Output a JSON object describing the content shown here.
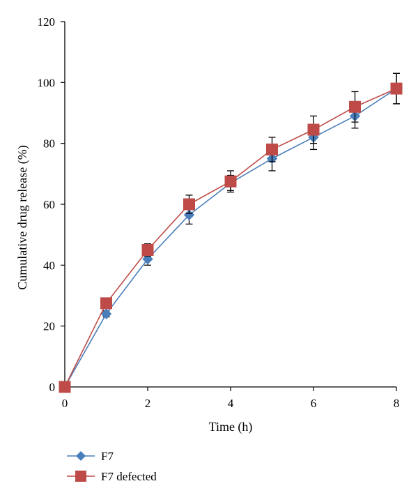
{
  "chart_data": {
    "type": "line",
    "title": "",
    "xlabel": "Time (h)",
    "ylabel": "Cumulative drug release (%)",
    "xlim": [
      0,
      8
    ],
    "ylim": [
      0,
      120
    ],
    "x_ticks": [
      "0",
      "2",
      "4",
      "6",
      "8"
    ],
    "y_ticks": [
      "0",
      "20",
      "40",
      "60",
      "80",
      "100",
      "120"
    ],
    "grid": false,
    "legend_position": "bottom-left",
    "x": [
      0,
      1,
      2,
      3,
      4,
      5,
      6,
      7,
      8
    ],
    "series": [
      {
        "name": "F7",
        "values": [
          0,
          24,
          42,
          56.5,
          67,
          75,
          82,
          89,
          98
        ],
        "errors": [
          0,
          1,
          2,
          3,
          2.5,
          4,
          4,
          4,
          5
        ],
        "color": "#4a7ebb",
        "marker": "diamond"
      },
      {
        "name": "F7 defected",
        "values": [
          0,
          27.5,
          45,
          60,
          67.5,
          78,
          84.5,
          92,
          98
        ],
        "errors": [
          0,
          1.5,
          2,
          3,
          3.5,
          4,
          4.5,
          5,
          5
        ],
        "color": "#be4b48",
        "marker": "square"
      }
    ]
  }
}
